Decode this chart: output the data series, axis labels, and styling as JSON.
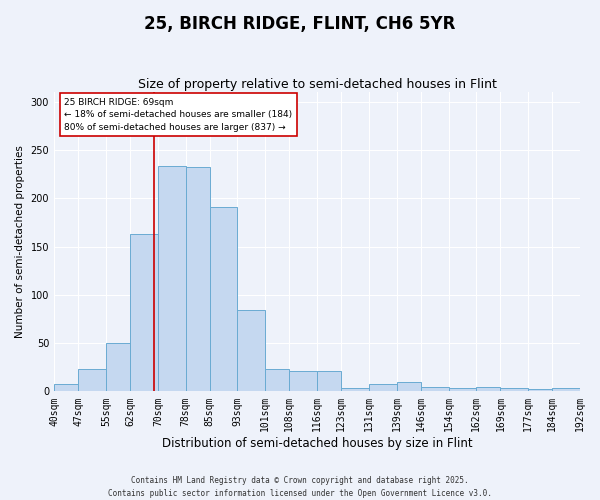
{
  "title": "25, BIRCH RIDGE, FLINT, CH6 5YR",
  "subtitle": "Size of property relative to semi-detached houses in Flint",
  "xlabel": "Distribution of semi-detached houses by size in Flint",
  "ylabel": "Number of semi-detached properties",
  "bin_labels": [
    "40sqm",
    "47sqm",
    "55sqm",
    "62sqm",
    "70sqm",
    "78sqm",
    "85sqm",
    "93sqm",
    "101sqm",
    "108sqm",
    "116sqm",
    "123sqm",
    "131sqm",
    "139sqm",
    "146sqm",
    "154sqm",
    "162sqm",
    "169sqm",
    "177sqm",
    "184sqm",
    "192sqm"
  ],
  "bin_edges": [
    40,
    47,
    55,
    62,
    70,
    78,
    85,
    93,
    101,
    108,
    116,
    123,
    131,
    139,
    146,
    154,
    162,
    169,
    177,
    184,
    192
  ],
  "bar_values": [
    8,
    23,
    50,
    163,
    234,
    232,
    191,
    84,
    23,
    21,
    21,
    3,
    8,
    10,
    4,
    3,
    4,
    3,
    2,
    3
  ],
  "bar_color": "#c5d8f0",
  "bar_edgecolor": "#6aabd2",
  "vline_x": 69,
  "vline_color": "#cc0000",
  "annotation_text": "25 BIRCH RIDGE: 69sqm\n← 18% of semi-detached houses are smaller (184)\n80% of semi-detached houses are larger (837) →",
  "annotation_box_edgecolor": "#cc0000",
  "ylim": [
    0,
    310
  ],
  "background_color": "#eef2fa",
  "footer_line1": "Contains HM Land Registry data © Crown copyright and database right 2025.",
  "footer_line2": "Contains public sector information licensed under the Open Government Licence v3.0.",
  "title_fontsize": 12,
  "subtitle_fontsize": 9,
  "xlabel_fontsize": 8.5,
  "ylabel_fontsize": 7.5,
  "tick_fontsize": 7,
  "footer_fontsize": 5.5
}
